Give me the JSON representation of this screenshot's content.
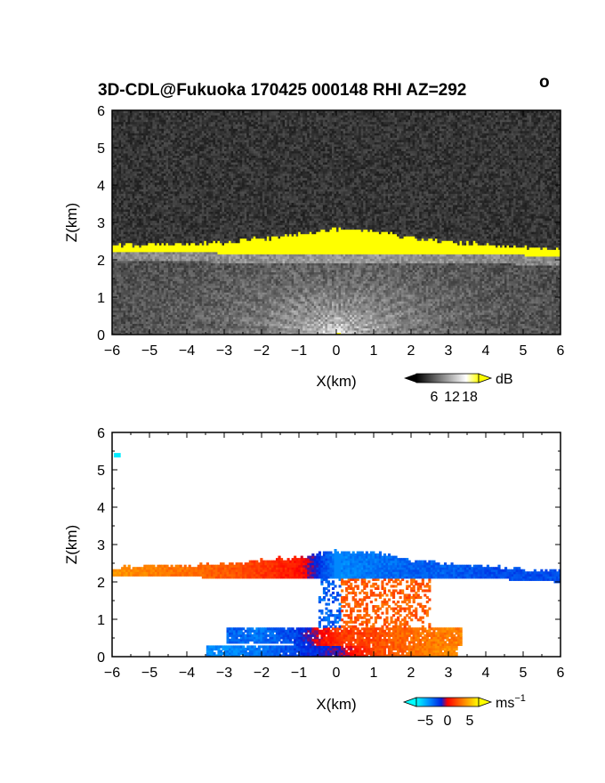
{
  "title": "3D-CDL@Fukuoka 170425 000148 RHI AZ=292",
  "title_degree": "o",
  "chart_data": [
    {
      "type": "heatmap",
      "name": "echo-intensity",
      "xlabel": "X(km)",
      "ylabel": "Z(km)",
      "xlim": [
        -6,
        6
      ],
      "ylim": [
        0,
        6
      ],
      "xticks": [
        "-6",
        "-5",
        "-4",
        "-3",
        "-2",
        "-1",
        "0",
        "1",
        "2",
        "3",
        "4",
        "5",
        "6"
      ],
      "yticks": [
        "0",
        "1",
        "2",
        "3",
        "4",
        "5",
        "6"
      ],
      "colorbar": {
        "unit": "dB",
        "ticks": [
          "6",
          "12",
          "18"
        ],
        "tick_values": [
          6,
          12,
          18
        ],
        "range": [
          0,
          21
        ]
      },
      "layers": {
        "cloud_layer_top_km": [
          2.35,
          2.4,
          2.4,
          2.45,
          2.55,
          2.65,
          2.8,
          2.75,
          2.55,
          2.45,
          2.4,
          2.3,
          2.25
        ],
        "cloud_layer_base_km": [
          2.2,
          2.2,
          2.2,
          2.15,
          2.15,
          2.15,
          2.15,
          2.15,
          2.15,
          2.15,
          2.15,
          2.1,
          2.05
        ],
        "layer_x_km": [
          -6,
          -5,
          -4,
          -3,
          -2,
          -1,
          0,
          1,
          2,
          3,
          4,
          5,
          6
        ],
        "cloud_intensity_db": 20,
        "background_noise_db": 3,
        "near_range_clutter_db": 12
      }
    },
    {
      "type": "heatmap",
      "name": "doppler-velocity",
      "xlabel": "X(km)",
      "ylabel": "Z(km)",
      "xlim": [
        -6,
        6
      ],
      "ylim": [
        0,
        6
      ],
      "xticks": [
        "-6",
        "-5",
        "-4",
        "-3",
        "-2",
        "-1",
        "0",
        "1",
        "2",
        "3",
        "4",
        "5",
        "6"
      ],
      "yticks": [
        "0",
        "1",
        "2",
        "3",
        "4",
        "5",
        "6"
      ],
      "colorbar": {
        "unit": "ms",
        "unit_exponent": "−1",
        "ticks": [
          "−5",
          "0",
          "5"
        ],
        "tick_values": [
          -5,
          0,
          5
        ],
        "range": [
          -7,
          7
        ]
      },
      "layers": {
        "upper_layer_velocity_ms": [
          4,
          3.5,
          3,
          2.5,
          1.5,
          0.5,
          -4,
          -3.5,
          -3,
          -3,
          -2.5,
          -2.5,
          -2.5
        ],
        "upper_layer_x_km": [
          -6,
          -5,
          -4,
          -3,
          -2,
          -1,
          0,
          1,
          2,
          3,
          4,
          5,
          6
        ],
        "low_jet_velocity_ms": [
          -3,
          -3.5,
          -2,
          1.5,
          2,
          3,
          3.5
        ],
        "low_jet_x_km": [
          -3,
          -2,
          -1,
          0,
          1,
          2,
          3
        ],
        "surface_layer_velocity_ms": [
          -4,
          -4,
          -3.5,
          -2,
          -1,
          2,
          3,
          4
        ],
        "surface_layer_x_km": [
          -3.5,
          -3,
          -2,
          -1,
          0,
          1,
          2,
          3
        ]
      }
    }
  ]
}
